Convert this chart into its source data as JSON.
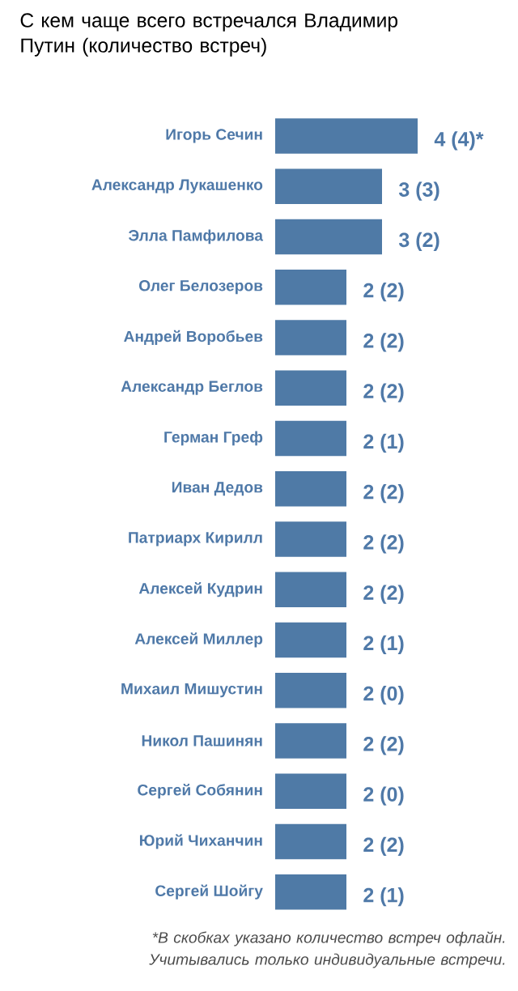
{
  "chart_data": {
    "type": "bar",
    "orientation": "horizontal",
    "title": "С кем чаще всего встречался Владимир Путин (количество встреч)",
    "categories": [
      "Игорь Сечин",
      "Александр Лукашенко",
      "Элла Памфилова",
      "Олег Белозеров",
      "Андрей Воробьев",
      "Александр Беглов",
      "Герман Греф",
      "Иван Дедов",
      "Патриарх Кирилл",
      "Алексей Кудрин",
      "Алексей Миллер",
      "Михаил Мишустин",
      "Никол Пашинян",
      "Сергей Собянин",
      "Юрий Чиханчин",
      "Сергей Шойгу"
    ],
    "values": [
      4,
      3,
      3,
      2,
      2,
      2,
      2,
      2,
      2,
      2,
      2,
      2,
      2,
      2,
      2,
      2
    ],
    "value_labels": [
      "4 (4)*",
      "3 (3)",
      "3 (2)",
      "2 (2)",
      "2 (2)",
      "2 (2)",
      "2 (1)",
      "2 (2)",
      "2 (2)",
      "2 (2)",
      "2 (1)",
      "2 (0)",
      "2 (2)",
      "2 (0)",
      "2 (2)",
      "2 (1)"
    ],
    "color": "#4f7aa6",
    "tick_labels": "y",
    "annotations": [
      "*В скобках указано количество встреч офлайн. Учитывались только индивидуальные встречи."
    ]
  }
}
